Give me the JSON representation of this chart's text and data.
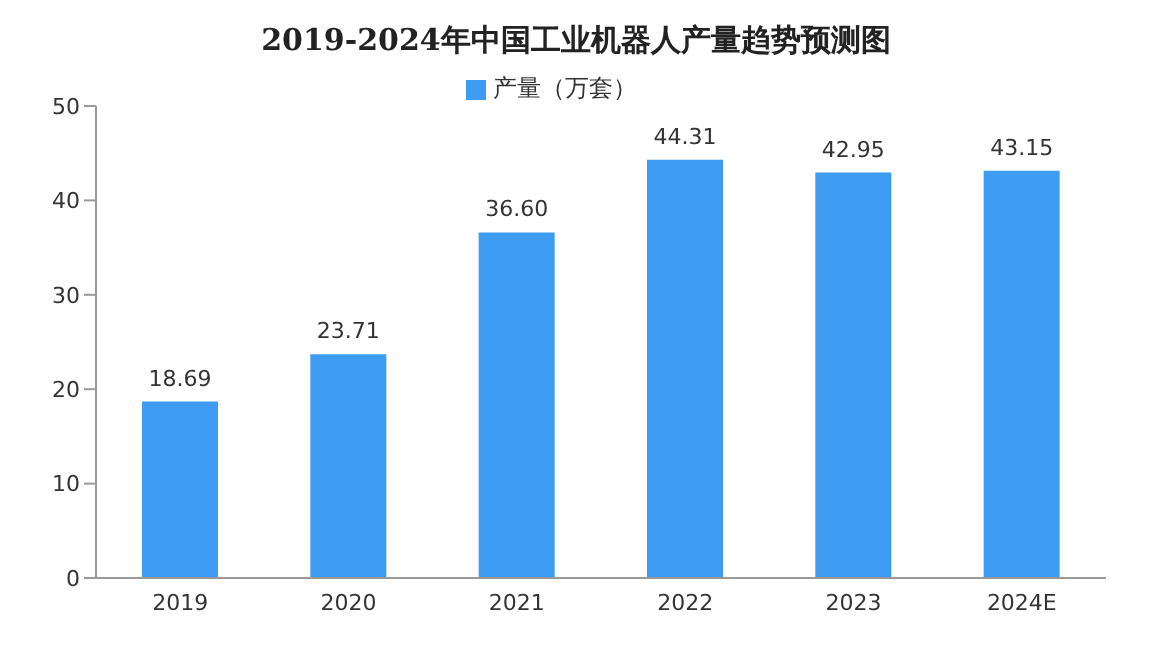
{
  "chart_data": {
    "type": "bar",
    "title": "2019-2024年中国工业机器人产量趋势预测图",
    "categories": [
      "2019",
      "2020",
      "2021",
      "2022",
      "2023",
      "2024E"
    ],
    "series": [
      {
        "name": "产量（万套）",
        "color": "#3d9cf2",
        "values": [
          18.69,
          23.71,
          36.6,
          44.31,
          42.95,
          43.15
        ]
      }
    ],
    "value_labels": [
      "18.69",
      "23.71",
      "36.60",
      "44.31",
      "42.95",
      "43.15"
    ],
    "ylim": [
      0,
      50
    ],
    "yticks": [
      0,
      10,
      20,
      30,
      40,
      50
    ],
    "grid": false,
    "legend": "top"
  }
}
